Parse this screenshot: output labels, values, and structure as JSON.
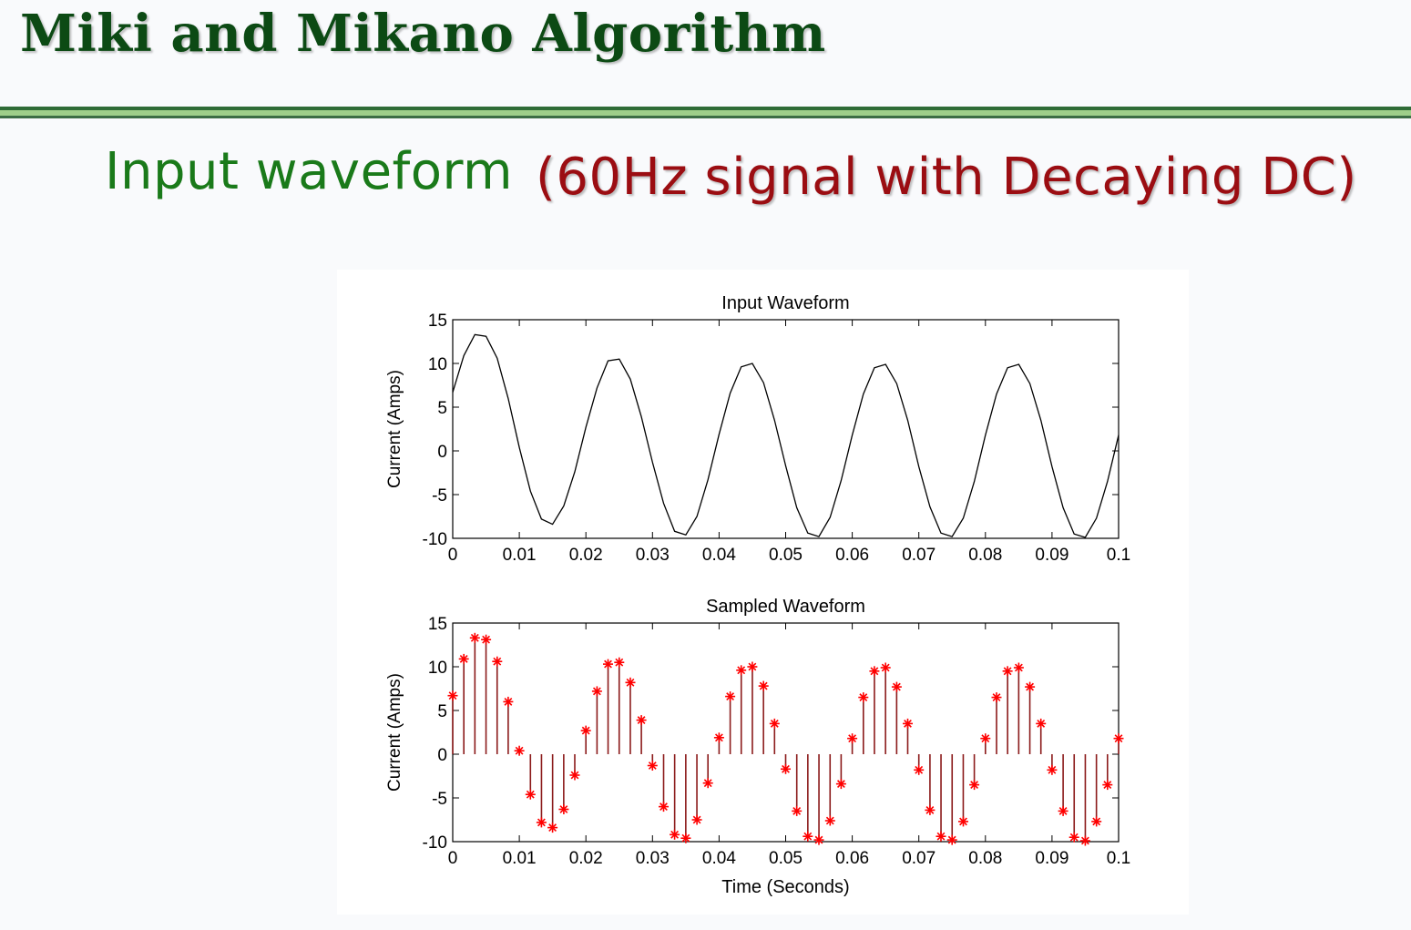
{
  "slide": {
    "title": "Miki and Mikano Algorithm",
    "subtitle_part1": "Input waveform",
    "subtitle_part2": "(60Hz signal with Decaying DC)"
  },
  "colors": {
    "title": "#0c4a14",
    "subtitle_green": "#1a7a1a",
    "subtitle_red": "#9b0d12",
    "stem": "#8b1a1a",
    "marker": "#ff0000",
    "line": "#000000"
  },
  "chart_data": [
    {
      "type": "line",
      "title": "Input Waveform",
      "xlabel": "",
      "ylabel": "Current (Amps)",
      "xlim": [
        0,
        0.1
      ],
      "ylim": [
        -10,
        15
      ],
      "xticks": [
        "0",
        "0.01",
        "0.02",
        "0.03",
        "0.04",
        "0.05",
        "0.06",
        "0.07",
        "0.08",
        "0.09",
        "0.1"
      ],
      "yticks": [
        "15",
        "10",
        "5",
        "0",
        "-5",
        "-10"
      ],
      "grid": false,
      "series": [
        {
          "x": [
            0,
            0.00167,
            0.00333,
            0.005,
            0.00667,
            0.00833,
            0.01,
            0.01167,
            0.01333,
            0.015,
            0.01667,
            0.01833,
            0.02,
            0.02167,
            0.02333,
            0.025,
            0.02667,
            0.02833,
            0.03,
            0.03167,
            0.03333,
            0.035,
            0.03667,
            0.03833,
            0.04,
            0.04167,
            0.04333,
            0.045,
            0.04667,
            0.04833,
            0.05,
            0.05167,
            0.05333,
            0.055,
            0.05667,
            0.05833,
            0.06,
            0.06167,
            0.06333,
            0.065,
            0.06667,
            0.06833,
            0.07,
            0.07167,
            0.07333,
            0.075,
            0.07667,
            0.07833,
            0.08,
            0.08167,
            0.08333,
            0.085,
            0.08667,
            0.08833,
            0.09,
            0.09167,
            0.09333,
            0.095,
            0.09667,
            0.09833,
            0.1
          ],
          "y": [
            6.7,
            10.9,
            13.3,
            13.1,
            10.6,
            6.0,
            0.4,
            -4.6,
            -7.8,
            -8.4,
            -6.3,
            -2.4,
            2.7,
            7.2,
            10.3,
            10.5,
            8.2,
            3.9,
            -1.3,
            -6.0,
            -9.2,
            -9.6,
            -7.5,
            -3.3,
            1.9,
            6.6,
            9.6,
            10.0,
            7.8,
            3.5,
            -1.7,
            -6.5,
            -9.4,
            -9.8,
            -7.6,
            -3.4,
            1.8,
            6.5,
            9.5,
            9.9,
            7.7,
            3.5,
            -1.8,
            -6.4,
            -9.4,
            -9.8,
            -7.7,
            -3.5,
            1.8,
            6.5,
            9.5,
            9.9,
            7.7,
            3.5,
            -1.8,
            -6.5,
            -9.5,
            -9.9,
            -7.7,
            -3.5,
            1.8
          ]
        }
      ]
    },
    {
      "type": "stem",
      "title": "Sampled Waveform",
      "xlabel": "Time (Seconds)",
      "ylabel": "Current (Amps)",
      "xlim": [
        0,
        0.1
      ],
      "ylim": [
        -10,
        15
      ],
      "xticks": [
        "0",
        "0.01",
        "0.02",
        "0.03",
        "0.04",
        "0.05",
        "0.06",
        "0.07",
        "0.08",
        "0.09",
        "0.1"
      ],
      "yticks": [
        "15",
        "10",
        "5",
        "0",
        "-5",
        "-10"
      ],
      "grid": false,
      "series": [
        {
          "marker": "*",
          "x": [
            0,
            0.00167,
            0.00333,
            0.005,
            0.00667,
            0.00833,
            0.01,
            0.01167,
            0.01333,
            0.015,
            0.01667,
            0.01833,
            0.02,
            0.02167,
            0.02333,
            0.025,
            0.02667,
            0.02833,
            0.03,
            0.03167,
            0.03333,
            0.035,
            0.03667,
            0.03833,
            0.04,
            0.04167,
            0.04333,
            0.045,
            0.04667,
            0.04833,
            0.05,
            0.05167,
            0.05333,
            0.055,
            0.05667,
            0.05833,
            0.06,
            0.06167,
            0.06333,
            0.065,
            0.06667,
            0.06833,
            0.07,
            0.07167,
            0.07333,
            0.075,
            0.07667,
            0.07833,
            0.08,
            0.08167,
            0.08333,
            0.085,
            0.08667,
            0.08833,
            0.09,
            0.09167,
            0.09333,
            0.095,
            0.09667,
            0.09833,
            0.1
          ],
          "y": [
            6.7,
            10.9,
            13.3,
            13.1,
            10.6,
            6.0,
            0.4,
            -4.6,
            -7.8,
            -8.4,
            -6.3,
            -2.4,
            2.7,
            7.2,
            10.3,
            10.5,
            8.2,
            3.9,
            -1.3,
            -6.0,
            -9.2,
            -9.6,
            -7.5,
            -3.3,
            1.9,
            6.6,
            9.6,
            10.0,
            7.8,
            3.5,
            -1.7,
            -6.5,
            -9.4,
            -9.8,
            -7.6,
            -3.4,
            1.8,
            6.5,
            9.5,
            9.9,
            7.7,
            3.5,
            -1.8,
            -6.4,
            -9.4,
            -9.8,
            -7.7,
            -3.5,
            1.8,
            6.5,
            9.5,
            9.9,
            7.7,
            3.5,
            -1.8,
            -6.5,
            -9.5,
            -9.9,
            -7.7,
            -3.5,
            1.8
          ]
        }
      ]
    }
  ]
}
